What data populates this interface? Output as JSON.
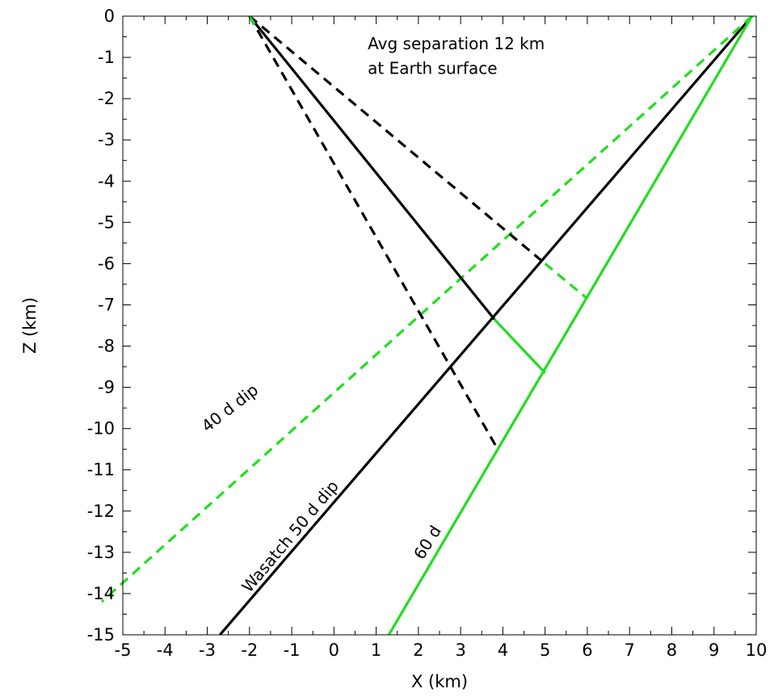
{
  "chart_data": {
    "type": "line",
    "title": "",
    "xlabel": "X (km)",
    "ylabel": "Z (km)",
    "xlim": [
      -5,
      10
    ],
    "ylim": [
      -15,
      0
    ],
    "grid": false,
    "x_ticks": [
      -5,
      -4,
      -3,
      -2,
      -1,
      0,
      1,
      2,
      3,
      4,
      5,
      6,
      7,
      8,
      9,
      10
    ],
    "y_ticks": [
      0,
      -1,
      -2,
      -3,
      -4,
      -5,
      -6,
      -7,
      -8,
      -9,
      -10,
      -11,
      -12,
      -13,
      -14,
      -15
    ],
    "colors": {
      "black": "#000000",
      "green": "#22dd22"
    },
    "series": [
      {
        "name": "Wasatch 50 d dip",
        "color": "#000000",
        "style": "solid",
        "points": [
          [
            9.9,
            0
          ],
          [
            -2.7,
            -15
          ]
        ]
      },
      {
        "name": "40 d dip",
        "color": "#22dd22",
        "style": "dashed",
        "points": [
          [
            9.9,
            0
          ],
          [
            -5.5,
            -14.2
          ]
        ]
      },
      {
        "name": "60 d",
        "color": "#22dd22",
        "style": "solid",
        "points": [
          [
            9.9,
            0
          ],
          [
            1.3,
            -15
          ]
        ]
      },
      {
        "color": "#000000",
        "style": "solid",
        "points": [
          [
            -2.0,
            0
          ],
          [
            3.8,
            -7.35
          ]
        ]
      },
      {
        "color": "#22dd22",
        "style": "solid",
        "points": [
          [
            3.8,
            -7.35
          ],
          [
            5.0,
            -8.65
          ]
        ]
      },
      {
        "color": "#000000",
        "style": "dashed",
        "points": [
          [
            -2.0,
            0
          ],
          [
            5.0,
            -6.0
          ]
        ]
      },
      {
        "color": "#22dd22",
        "style": "dashed",
        "points": [
          [
            5.0,
            -6.0
          ],
          [
            6.0,
            -6.85
          ]
        ]
      },
      {
        "color": "#000000",
        "style": "dashed",
        "points": [
          [
            -2.0,
            0
          ],
          [
            3.85,
            -10.45
          ]
        ]
      },
      {
        "color": "#22dd22",
        "style": "dashed",
        "points": [
          [
            -2.0,
            0
          ],
          [
            -1.85,
            -0.25
          ]
        ]
      }
    ],
    "annotations": [
      {
        "text": "Avg separation 12 km",
        "x": 0.8,
        "y": -0.8,
        "rotation": 0
      },
      {
        "text": "at Earth surface",
        "x": 0.8,
        "y": -1.4,
        "rotation": 0
      },
      {
        "text": "40 d dip",
        "x": -3.0,
        "y": -10.1,
        "rotation": -38
      },
      {
        "text": "Wasatch 50 d dip",
        "x": -2.0,
        "y": -14.0,
        "rotation": -50
      },
      {
        "text": "60 d",
        "x": 2.1,
        "y": -13.2,
        "rotation": -58
      }
    ]
  }
}
